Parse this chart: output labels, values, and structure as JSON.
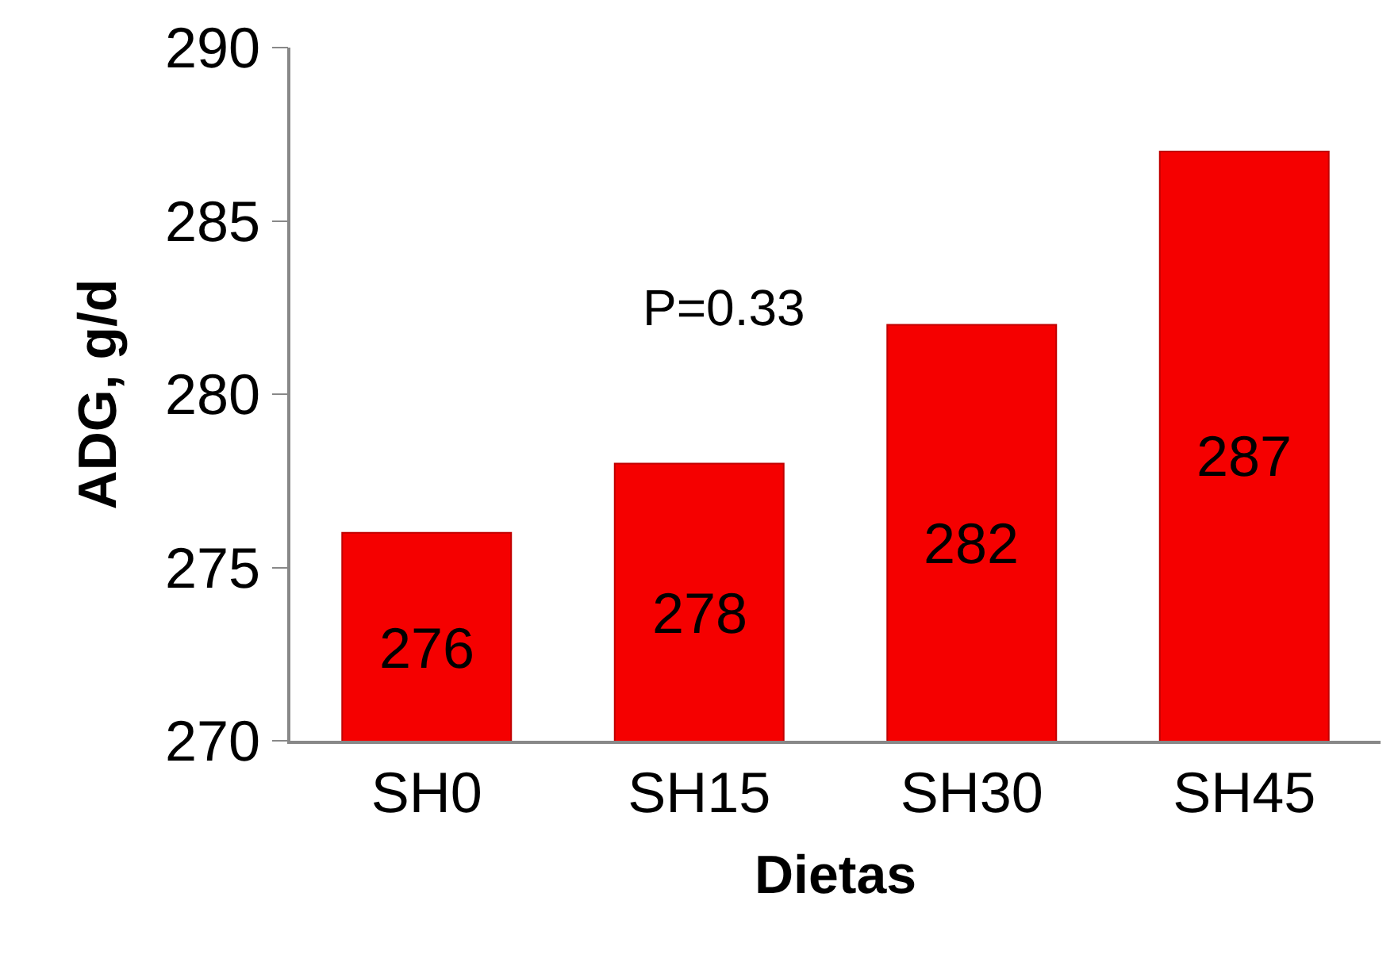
{
  "chart_data": {
    "type": "bar",
    "xlabel": "Dietas",
    "ylabel": "ADG, g/d",
    "categories": [
      "SH0",
      "SH15",
      "SH30",
      "SH45"
    ],
    "values": [
      276,
      278,
      282,
      287
    ],
    "color": "#f50000",
    "ylim": [
      270,
      290
    ],
    "yticks": [
      270,
      275,
      280,
      285,
      290
    ],
    "grid": false,
    "legend": false,
    "data_labels": true,
    "annotations": [
      "P=0.33"
    ]
  }
}
